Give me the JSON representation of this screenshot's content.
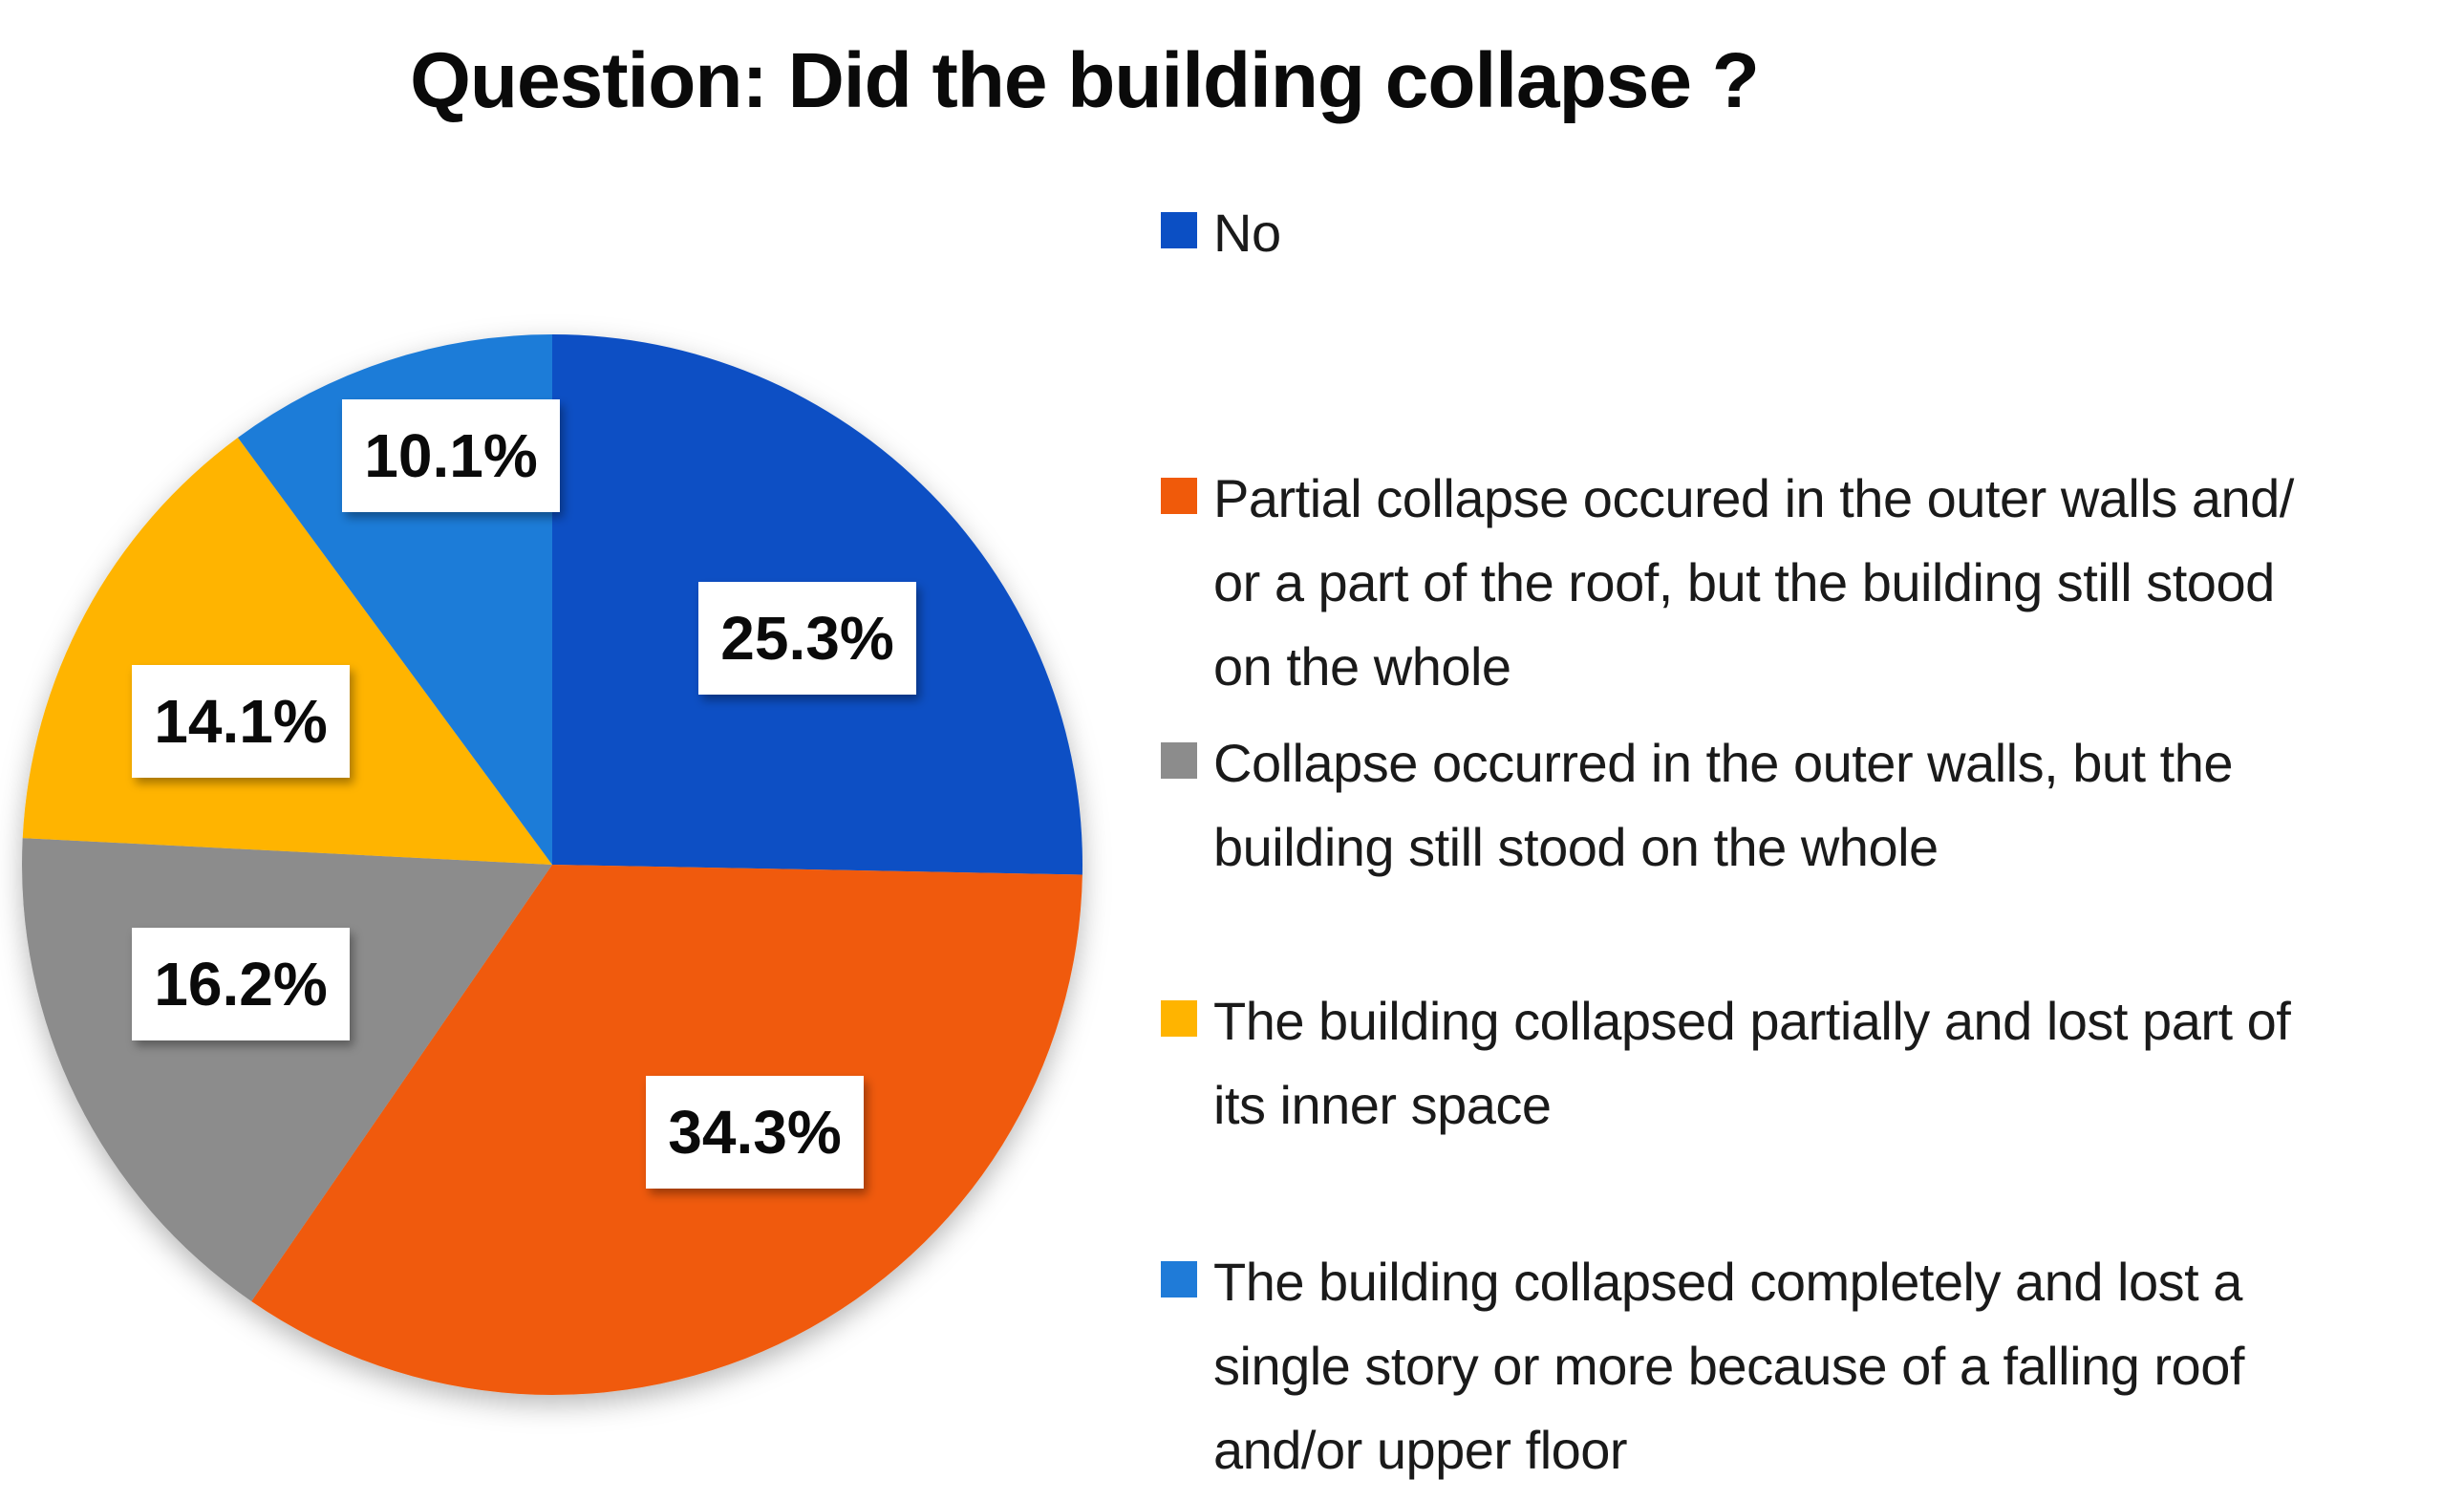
{
  "chart_data": {
    "type": "pie",
    "title": "Question: Did the building collapse ?",
    "legend_position": "right",
    "slices": [
      {
        "name": "No",
        "value": 25.3,
        "label": "25.3%",
        "color": "#0b4fc4"
      },
      {
        "name": "Partial collapse occured in the outer walls and/ or a part of the roof, but the building still stood on the whole",
        "value": 34.3,
        "label": "34.3%",
        "color": "#f05a0a"
      },
      {
        "name": "Collapse occurred in the outer walls, but the building still stood on the whole",
        "value": 16.2,
        "label": "16.2%",
        "color": "#8c8c8c"
      },
      {
        "name": "The building collapsed partially and lost part of its inner space",
        "value": 14.1,
        "label": "14.1%",
        "color": "#ffb400"
      },
      {
        "name": "The building collapsed completely and lost a single story or more because of a falling roof and/or upper floor",
        "value": 10.1,
        "label": "10.1%",
        "color": "#1f7bd8"
      }
    ]
  }
}
